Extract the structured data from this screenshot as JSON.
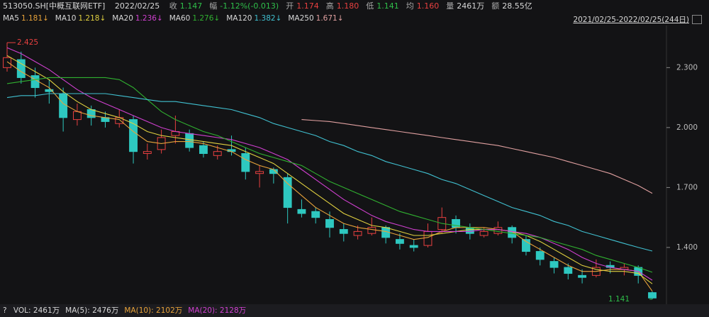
{
  "header": {
    "code": "513050.SH[中概互联网ETF]",
    "date": "2022/02/25",
    "items": [
      {
        "label": "收",
        "value": "1.147",
        "color": "#2fbf4a"
      },
      {
        "label": "幅",
        "value": "-1.12%(-0.013)",
        "color": "#2fbf4a"
      },
      {
        "label": "开",
        "value": "1.174",
        "color": "#e84040"
      },
      {
        "label": "高",
        "value": "1.180",
        "color": "#e84040"
      },
      {
        "label": "低",
        "value": "1.141",
        "color": "#2fbf4a"
      },
      {
        "label": "均",
        "value": "1.160",
        "color": "#e84040"
      },
      {
        "label": "量",
        "value": "2461万",
        "color": "#d8d8d8"
      },
      {
        "label": "额",
        "value": "28.55亿",
        "color": "#d8d8d8"
      }
    ]
  },
  "chart_data": {
    "type": "candlestick",
    "range_label": "2021/02/25-2022/02/25(244日)",
    "ylim": [
      1.13,
      2.5
    ],
    "yticks": [
      {
        "value": 2.3,
        "label": "2.300"
      },
      {
        "value": 2.0,
        "label": "2.000"
      },
      {
        "value": 1.7,
        "label": "1.700"
      },
      {
        "value": 1.4,
        "label": "1.400"
      }
    ],
    "grid": false,
    "up_color": "#e84040",
    "down_color": "#2ec8c0",
    "annotations": [
      {
        "text": "2.425",
        "value": 2.425,
        "index": 0,
        "color": "#e84040"
      },
      {
        "text": "1.141",
        "value": 1.141,
        "index": 46,
        "color": "#2fbf4a"
      }
    ],
    "candles": {
      "open": [
        2.3,
        2.34,
        2.26,
        2.19,
        2.17,
        2.04,
        2.09,
        2.05,
        2.02,
        2.04,
        1.87,
        1.89,
        1.96,
        1.97,
        1.91,
        1.86,
        1.89,
        1.87,
        1.77,
        1.79,
        1.75,
        1.59,
        1.58,
        1.54,
        1.49,
        1.46,
        1.47,
        1.5,
        1.44,
        1.41,
        1.41,
        1.49,
        1.54,
        1.5,
        1.46,
        1.47,
        1.5,
        1.44,
        1.38,
        1.33,
        1.3,
        1.26,
        1.26,
        1.31,
        1.29,
        1.3,
        1.174
      ],
      "high": [
        2.425,
        2.38,
        2.3,
        2.24,
        2.2,
        2.12,
        2.11,
        2.08,
        2.09,
        2.06,
        1.92,
        1.99,
        2.06,
        1.99,
        1.93,
        1.91,
        1.96,
        1.9,
        1.81,
        1.8,
        1.77,
        1.64,
        1.6,
        1.58,
        1.52,
        1.51,
        1.55,
        1.51,
        1.47,
        1.44,
        1.52,
        1.6,
        1.56,
        1.52,
        1.5,
        1.53,
        1.51,
        1.46,
        1.4,
        1.35,
        1.32,
        1.29,
        1.34,
        1.33,
        1.32,
        1.31,
        1.18
      ],
      "low": [
        2.28,
        2.22,
        2.15,
        2.12,
        1.98,
        2.01,
        2.01,
        2.0,
        2.0,
        1.82,
        1.84,
        1.87,
        1.92,
        1.88,
        1.85,
        1.84,
        1.86,
        1.74,
        1.7,
        1.72,
        1.52,
        1.55,
        1.52,
        1.45,
        1.43,
        1.44,
        1.46,
        1.42,
        1.39,
        1.38,
        1.4,
        1.47,
        1.47,
        1.44,
        1.45,
        1.46,
        1.42,
        1.36,
        1.31,
        1.27,
        1.24,
        1.22,
        1.25,
        1.27,
        1.26,
        1.22,
        1.141
      ],
      "close": [
        2.35,
        2.25,
        2.2,
        2.18,
        2.05,
        2.08,
        2.05,
        2.03,
        2.05,
        1.88,
        1.88,
        1.95,
        1.98,
        1.9,
        1.87,
        1.88,
        1.88,
        1.78,
        1.78,
        1.77,
        1.6,
        1.57,
        1.55,
        1.5,
        1.47,
        1.48,
        1.5,
        1.45,
        1.42,
        1.4,
        1.48,
        1.55,
        1.5,
        1.47,
        1.48,
        1.5,
        1.45,
        1.38,
        1.34,
        1.3,
        1.27,
        1.25,
        1.3,
        1.3,
        1.3,
        1.26,
        1.147
      ]
    },
    "series": [
      {
        "name": "MA5",
        "label": "1.181↓",
        "color": "#e8a33a",
        "values": [
          2.33,
          2.28,
          2.24,
          2.2,
          2.12,
          2.08,
          2.06,
          2.05,
          2.04,
          1.98,
          1.93,
          1.92,
          1.93,
          1.93,
          1.92,
          1.9,
          1.88,
          1.84,
          1.81,
          1.79,
          1.72,
          1.66,
          1.6,
          1.56,
          1.52,
          1.5,
          1.49,
          1.48,
          1.46,
          1.44,
          1.45,
          1.48,
          1.5,
          1.5,
          1.5,
          1.49,
          1.48,
          1.43,
          1.39,
          1.35,
          1.31,
          1.28,
          1.28,
          1.29,
          1.29,
          1.28,
          1.181
        ]
      },
      {
        "name": "MA10",
        "label": "1.218↓",
        "color": "#e0d040",
        "values": [
          2.36,
          2.32,
          2.28,
          2.24,
          2.18,
          2.13,
          2.09,
          2.07,
          2.05,
          2.02,
          1.98,
          1.96,
          1.95,
          1.94,
          1.93,
          1.92,
          1.91,
          1.88,
          1.85,
          1.82,
          1.77,
          1.72,
          1.67,
          1.62,
          1.57,
          1.54,
          1.51,
          1.5,
          1.48,
          1.46,
          1.46,
          1.47,
          1.48,
          1.49,
          1.49,
          1.49,
          1.48,
          1.46,
          1.43,
          1.39,
          1.35,
          1.31,
          1.29,
          1.28,
          1.28,
          1.27,
          1.218
        ]
      },
      {
        "name": "MA20",
        "label": "1.236↓",
        "color": "#d040d0",
        "values": [
          2.4,
          2.37,
          2.33,
          2.29,
          2.24,
          2.19,
          2.15,
          2.12,
          2.09,
          2.06,
          2.03,
          2.0,
          1.98,
          1.97,
          1.96,
          1.95,
          1.94,
          1.92,
          1.9,
          1.87,
          1.84,
          1.79,
          1.74,
          1.69,
          1.64,
          1.6,
          1.56,
          1.53,
          1.51,
          1.49,
          1.48,
          1.48,
          1.48,
          1.48,
          1.49,
          1.49,
          1.48,
          1.47,
          1.45,
          1.42,
          1.39,
          1.35,
          1.32,
          1.3,
          1.29,
          1.28,
          1.236
        ]
      },
      {
        "name": "MA60",
        "label": "1.276↓",
        "color": "#30b030",
        "values": [
          2.22,
          2.23,
          2.24,
          2.25,
          2.25,
          2.25,
          2.25,
          2.25,
          2.24,
          2.2,
          2.14,
          2.08,
          2.04,
          2.01,
          1.98,
          1.96,
          1.93,
          1.9,
          1.87,
          1.85,
          1.83,
          1.81,
          1.77,
          1.73,
          1.7,
          1.67,
          1.64,
          1.61,
          1.58,
          1.56,
          1.54,
          1.52,
          1.51,
          1.5,
          1.49,
          1.48,
          1.47,
          1.46,
          1.45,
          1.43,
          1.41,
          1.39,
          1.36,
          1.34,
          1.32,
          1.3,
          1.276
        ]
      },
      {
        "name": "MA120",
        "label": "1.382↓",
        "color": "#40c0d0",
        "values": [
          2.15,
          2.16,
          2.16,
          2.17,
          2.17,
          2.17,
          2.17,
          2.17,
          2.16,
          2.15,
          2.14,
          2.13,
          2.13,
          2.12,
          2.11,
          2.1,
          2.09,
          2.07,
          2.05,
          2.02,
          2.0,
          1.98,
          1.96,
          1.93,
          1.91,
          1.88,
          1.86,
          1.83,
          1.81,
          1.79,
          1.77,
          1.74,
          1.72,
          1.69,
          1.66,
          1.63,
          1.6,
          1.58,
          1.56,
          1.53,
          1.51,
          1.48,
          1.46,
          1.44,
          1.42,
          1.4,
          1.382
        ]
      },
      {
        "name": "MA250",
        "label": "1.671↓",
        "color": "#e0a0a0",
        "values": [
          null,
          null,
          null,
          null,
          null,
          null,
          null,
          null,
          null,
          null,
          null,
          null,
          null,
          null,
          null,
          null,
          null,
          null,
          null,
          null,
          null,
          2.04,
          2.035,
          2.03,
          2.02,
          2.01,
          2.0,
          1.99,
          1.98,
          1.97,
          1.96,
          1.95,
          1.94,
          1.93,
          1.92,
          1.91,
          1.895,
          1.88,
          1.865,
          1.85,
          1.83,
          1.81,
          1.79,
          1.77,
          1.74,
          1.71,
          1.671
        ]
      }
    ]
  },
  "footer": {
    "help": "?",
    "items": [
      {
        "text": "VOL: 2461万",
        "color": "#d8d8d8"
      },
      {
        "text": "MA(5): 2476万",
        "color": "#d8d8d8"
      },
      {
        "text": "MA(10): 2102万",
        "color": "#e8a33a"
      },
      {
        "text": "MA(20): 2128万",
        "color": "#d040d0"
      }
    ]
  }
}
